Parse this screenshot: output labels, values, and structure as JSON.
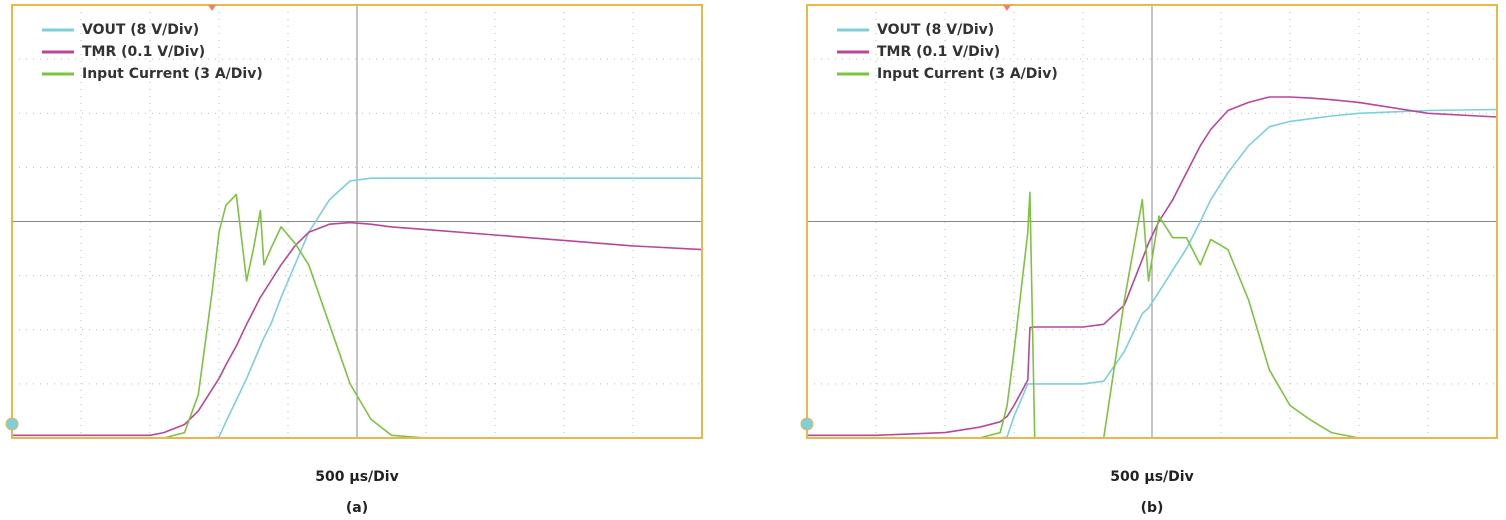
{
  "chart_data": [
    {
      "type": "line",
      "xlabel": "500 µs/Div",
      "caption": "(a)",
      "xlim": [
        0,
        10
      ],
      "ylim": [
        0,
        8
      ],
      "xticks": [
        0,
        1,
        2,
        3,
        4,
        5,
        6,
        7,
        8,
        9,
        10
      ],
      "yticks": [
        0,
        1,
        2,
        3,
        4,
        5,
        6,
        7,
        8
      ],
      "grid": true,
      "x": [
        0,
        1,
        2,
        2.2,
        2.5,
        2.7,
        2.9,
        3.0,
        3.1,
        3.25,
        3.4,
        3.5,
        3.6,
        3.65,
        3.75,
        3.9,
        4.1,
        4.3,
        4.6,
        4.9,
        5.2,
        5.5,
        6,
        7,
        8,
        9,
        10
      ],
      "series": [
        {
          "name": "VOUT (8 V/Div)",
          "color": "#7ecfdc",
          "values": [
            0,
            0,
            0,
            0,
            0,
            0,
            0,
            0.02,
            0.3,
            0.7,
            1.1,
            1.4,
            1.7,
            1.85,
            2.1,
            2.6,
            3.2,
            3.8,
            4.4,
            4.75,
            4.8,
            4.8,
            4.8,
            4.8,
            4.8,
            4.8,
            4.8
          ]
        },
        {
          "name": "TMR (0.1 V/Div)",
          "color": "#b8479b",
          "values": [
            0.05,
            0.05,
            0.05,
            0.1,
            0.25,
            0.5,
            0.9,
            1.1,
            1.35,
            1.7,
            2.1,
            2.35,
            2.6,
            2.7,
            2.9,
            3.2,
            3.55,
            3.8,
            3.95,
            3.98,
            3.95,
            3.9,
            3.85,
            3.75,
            3.65,
            3.55,
            3.48
          ]
        },
        {
          "name": "Input Current (3 A/Div)",
          "color": "#7fc241",
          "values": [
            0,
            0,
            0,
            0,
            0.1,
            0.8,
            2.7,
            3.8,
            4.3,
            4.5,
            2.9,
            3.5,
            4.2,
            3.2,
            3.5,
            3.9,
            3.6,
            3.2,
            2.1,
            1.0,
            0.35,
            0.05,
            0,
            0,
            0,
            0,
            0
          ]
        }
      ]
    },
    {
      "type": "line",
      "xlabel": "500 µs/Div",
      "caption": "(b)",
      "xlim": [
        0,
        10
      ],
      "ylim": [
        0,
        8
      ],
      "xticks": [
        0,
        1,
        2,
        3,
        4,
        5,
        6,
        7,
        8,
        9,
        10
      ],
      "yticks": [
        0,
        1,
        2,
        3,
        4,
        5,
        6,
        7,
        8
      ],
      "grid": true,
      "x": [
        0,
        1,
        2,
        2.5,
        2.8,
        2.9,
        3.0,
        3.2,
        3.23,
        3.3,
        4,
        4.3,
        4.6,
        4.86,
        4.95,
        5.1,
        5.3,
        5.5,
        5.7,
        5.85,
        6.1,
        6.4,
        6.7,
        7,
        7.3,
        7.6,
        8,
        9,
        10
      ],
      "series": [
        {
          "name": "VOUT (8 V/Div)",
          "color": "#7ecfdc",
          "values": [
            0,
            0,
            0,
            0,
            0,
            0.02,
            0.4,
            1.0,
            1.0,
            1.0,
            1.0,
            1.05,
            1.6,
            2.3,
            2.4,
            2.7,
            3.1,
            3.5,
            4.0,
            4.4,
            4.9,
            5.4,
            5.75,
            5.85,
            5.9,
            5.95,
            6.0,
            6.05,
            6.07
          ]
        },
        {
          "name": "TMR (0.1 V/Div)",
          "color": "#b8479b",
          "values": [
            0.05,
            0.05,
            0.1,
            0.2,
            0.3,
            0.4,
            0.6,
            1.07,
            2.04,
            2.05,
            2.05,
            2.1,
            2.46,
            3.3,
            3.6,
            4.0,
            4.4,
            4.9,
            5.4,
            5.7,
            6.05,
            6.2,
            6.3,
            6.3,
            6.28,
            6.25,
            6.2,
            6.0,
            5.93
          ]
        },
        {
          "name": "Input Current (3 A/Div)",
          "color": "#7fc241",
          "values": [
            0,
            0,
            0,
            0,
            0.1,
            0.6,
            1.6,
            3.8,
            4.54,
            0,
            0,
            0,
            2.55,
            4.4,
            2.9,
            4.1,
            3.7,
            3.7,
            3.2,
            3.67,
            3.48,
            2.55,
            1.26,
            0.6,
            0.33,
            0.1,
            0,
            0,
            0
          ]
        }
      ]
    }
  ]
}
